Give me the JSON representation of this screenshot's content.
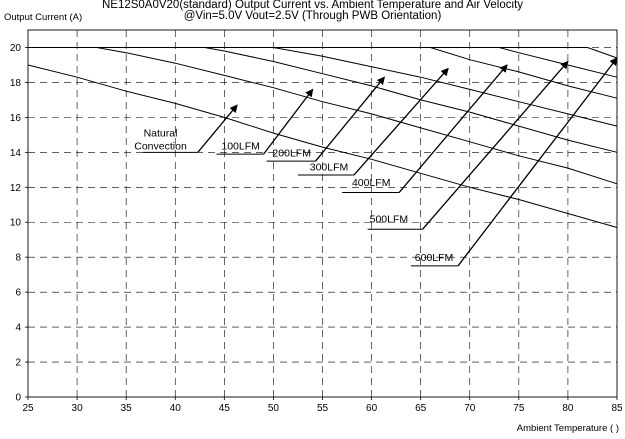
{
  "chart_data": {
    "type": "line",
    "title": "NE12S0A0V20(standard)  Output Current vs. Ambient Temperature and Air Velocity",
    "subtitle": "@Vin=5.0V Vout=2.5V (Through PWB Orientation)",
    "ylabel": "Output Current (A)",
    "xlabel": "Ambient Temperature (  )",
    "xlim": [
      25,
      85
    ],
    "ylim": [
      0,
      21
    ],
    "x_ticks": [
      25,
      30,
      35,
      40,
      45,
      50,
      55,
      60,
      65,
      70,
      75,
      80,
      85
    ],
    "y_ticks": [
      0,
      2,
      4,
      6,
      8,
      10,
      12,
      14,
      16,
      18,
      20
    ],
    "grid": true,
    "series": [
      {
        "name": "Natural Convection",
        "x": [
          25,
          30,
          35,
          40,
          45,
          50,
          55,
          60,
          65,
          70,
          75,
          80,
          85
        ],
        "y": [
          19.0,
          18.3,
          17.5,
          16.8,
          16.0,
          15.1,
          14.3,
          13.6,
          12.8,
          12.0,
          11.3,
          10.5,
          9.7
        ]
      },
      {
        "name": "100LFM",
        "x": [
          25,
          32,
          35,
          40,
          45,
          50,
          55,
          60,
          65,
          70,
          75,
          80,
          85
        ],
        "y": [
          20.0,
          20.0,
          19.7,
          19.1,
          18.4,
          17.7,
          16.9,
          16.2,
          15.4,
          14.6,
          13.8,
          13.1,
          12.2
        ]
      },
      {
        "name": "200LFM",
        "x": [
          25,
          43,
          45,
          50,
          55,
          60,
          65,
          70,
          75,
          80,
          85
        ],
        "y": [
          20.0,
          20.0,
          19.8,
          19.2,
          18.5,
          17.8,
          17.0,
          16.3,
          15.5,
          14.7,
          14.0
        ]
      },
      {
        "name": "300LFM",
        "x": [
          25,
          50,
          55,
          60,
          65,
          70,
          75,
          80,
          85
        ],
        "y": [
          20.0,
          20.0,
          19.5,
          18.9,
          18.3,
          17.6,
          16.9,
          16.2,
          15.5
        ]
      },
      {
        "name": "400LFM",
        "x": [
          25,
          66,
          70,
          75,
          80,
          85
        ],
        "y": [
          20.0,
          20.0,
          19.3,
          18.6,
          17.8,
          17.1
        ]
      },
      {
        "name": "500LFM",
        "x": [
          25,
          73,
          75,
          80,
          85
        ],
        "y": [
          20.0,
          20.0,
          19.7,
          19.0,
          18.3
        ]
      },
      {
        "name": "600LFM",
        "x": [
          25,
          82,
          83,
          84,
          85
        ],
        "y": [
          20.0,
          20.0,
          19.8,
          19.6,
          19.4
        ]
      }
    ],
    "annotations": [
      {
        "text": [
          "Natural",
          "Convection"
        ],
        "label_x": 38.5,
        "label_y": 14.0,
        "under_x": [
          36.7,
          42.3
        ],
        "under_y": 14.0,
        "tip_x": 46.3,
        "tip_y": 16.7
      },
      {
        "text": [
          "100LFM"
        ],
        "label_x": 44.7,
        "label_y": 14.0,
        "under_x": [
          44.2,
          49.0
        ],
        "under_y": 13.9,
        "tip_x": 54.0,
        "tip_y": 17.6
      },
      {
        "text": [
          "200LFM"
        ],
        "label_x": 49.9,
        "label_y": 13.6,
        "under_x": [
          49.3,
          54.3
        ],
        "under_y": 13.5,
        "tip_x": 61.3,
        "tip_y": 18.3
      },
      {
        "text": [
          "300LFM"
        ],
        "label_x": 53.7,
        "label_y": 12.8,
        "under_x": [
          52.5,
          58.2
        ],
        "under_y": 12.7,
        "tip_x": 67.8,
        "tip_y": 18.8
      },
      {
        "text": [
          "400LFM"
        ],
        "label_x": 58.0,
        "label_y": 11.9,
        "under_x": [
          57.0,
          62.8
        ],
        "under_y": 11.7,
        "tip_x": 73.8,
        "tip_y": 19.0
      },
      {
        "text": [
          "500LFM"
        ],
        "label_x": 59.8,
        "label_y": 9.8,
        "under_x": [
          59.6,
          65.2
        ],
        "under_y": 9.6,
        "tip_x": 80.0,
        "tip_y": 19.2
      },
      {
        "text": [
          "600LFM"
        ],
        "label_x": 64.4,
        "label_y": 7.6,
        "under_x": [
          64.0,
          68.8
        ],
        "under_y": 7.5,
        "tip_x": 85.0,
        "tip_y": 19.4
      }
    ]
  }
}
